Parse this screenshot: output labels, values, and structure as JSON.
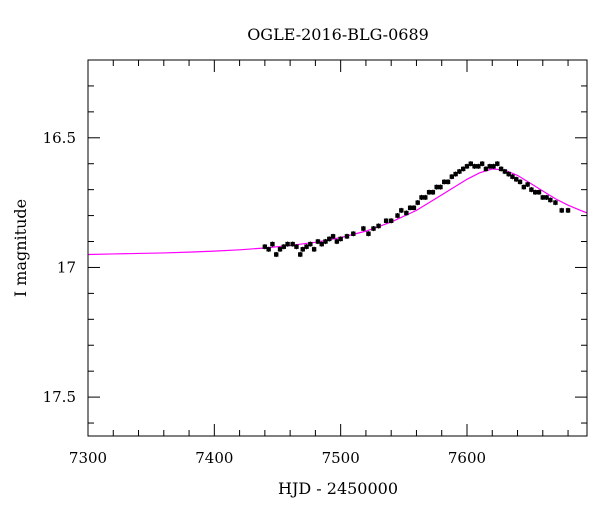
{
  "chart_data": {
    "type": "scatter",
    "title": "OGLE-2016-BLG-0689",
    "xlabel": "HJD - 2450000",
    "ylabel": "I magnitude",
    "xlim": [
      7300,
      7695
    ],
    "ylim": [
      17.65,
      16.2
    ],
    "y_inverted": true,
    "grid": false,
    "xticks": [
      7300,
      7400,
      7500,
      7600
    ],
    "xtick_labels": [
      "7300",
      "7400",
      "7500",
      "7600"
    ],
    "yticks": [
      16.5,
      17,
      17.5
    ],
    "ytick_labels": [
      "16.5",
      "17",
      "17.5"
    ],
    "colors": {
      "points": "#000000",
      "model": "#ff00ff",
      "frame": "#000000"
    },
    "series": [
      {
        "type": "scatter",
        "x": [
          7440,
          7443,
          7446,
          7449,
          7452,
          7455,
          7458,
          7462,
          7465,
          7468,
          7470,
          7473,
          7476,
          7479,
          7482,
          7485,
          7488,
          7491,
          7494,
          7497,
          7500,
          7505,
          7510,
          7518,
          7522,
          7526,
          7530,
          7536,
          7540,
          7545,
          7548,
          7552,
          7555,
          7558,
          7561,
          7564,
          7567,
          7570,
          7573,
          7576,
          7579,
          7582,
          7585,
          7588,
          7591,
          7594,
          7597,
          7600,
          7603,
          7606,
          7609,
          7612,
          7615,
          7618,
          7621,
          7624,
          7627,
          7630,
          7633,
          7636,
          7639,
          7642,
          7645,
          7648,
          7651,
          7654,
          7657,
          7660,
          7663,
          7666,
          7670,
          7675,
          7680
        ],
        "y": [
          16.92,
          16.93,
          16.91,
          16.95,
          16.93,
          16.92,
          16.91,
          16.91,
          16.92,
          16.95,
          16.93,
          16.92,
          16.91,
          16.93,
          16.9,
          16.91,
          16.9,
          16.89,
          16.88,
          16.9,
          16.89,
          16.88,
          16.87,
          16.85,
          16.87,
          16.85,
          16.84,
          16.82,
          16.82,
          16.8,
          16.78,
          16.79,
          16.77,
          16.77,
          16.75,
          16.73,
          16.73,
          16.71,
          16.71,
          16.69,
          16.69,
          16.67,
          16.67,
          16.65,
          16.64,
          16.63,
          16.62,
          16.61,
          16.6,
          16.61,
          16.61,
          16.6,
          16.62,
          16.61,
          16.61,
          16.6,
          16.62,
          16.63,
          16.64,
          16.65,
          16.66,
          16.67,
          16.69,
          16.68,
          16.7,
          16.71,
          16.71,
          16.73,
          16.73,
          16.74,
          16.75,
          16.78,
          16.78
        ],
        "yerr": 0.01
      },
      {
        "type": "line",
        "x": [
          7300,
          7320,
          7340,
          7360,
          7380,
          7400,
          7420,
          7440,
          7460,
          7480,
          7500,
          7520,
          7540,
          7560,
          7580,
          7600,
          7610,
          7620,
          7630,
          7640,
          7650,
          7660,
          7670,
          7680,
          7690,
          7695
        ],
        "y": [
          16.95,
          16.948,
          16.946,
          16.944,
          16.941,
          16.937,
          16.932,
          16.925,
          16.915,
          16.903,
          16.885,
          16.86,
          16.825,
          16.78,
          16.72,
          16.66,
          16.635,
          16.62,
          16.625,
          16.645,
          16.675,
          16.705,
          16.735,
          16.76,
          16.78,
          16.79
        ]
      }
    ]
  }
}
